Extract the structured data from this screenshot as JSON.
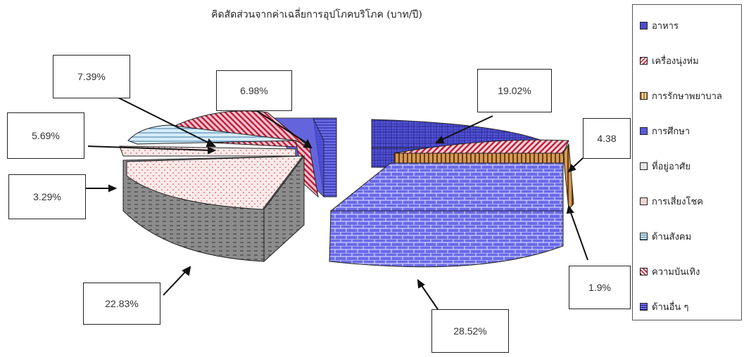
{
  "chart_data": {
    "type": "pie",
    "title": "คิดสัดส่วนจากค่าเฉลี่ยการอุปโภคบริโภค (บาท/ปี)",
    "legend_position": "right",
    "slices": [
      {
        "name": "อาหาร",
        "label": "19.02%",
        "value": 19.02,
        "color": "#4a4ad0"
      },
      {
        "name": "เครื่องนุ่งห่ม",
        "label": "4.38",
        "value": 4.38,
        "color": "#c9394a"
      },
      {
        "name": "การรักษาพยาบาล",
        "label": "1.9%",
        "value": 1.9,
        "color": "#b07a3a"
      },
      {
        "name": "การศึกษา",
        "label": "28.52%",
        "value": 28.52,
        "color": "#5a5adf"
      },
      {
        "name": "ที่อยู่อาศัย",
        "label": "22.83%",
        "value": 22.83,
        "color": "#8a8a8a"
      },
      {
        "name": "การเสี่ยงโชค",
        "label": "3.29%",
        "value": 3.29,
        "color": "#f4d6d6"
      },
      {
        "name": "ด้านสังคม",
        "label": "5.69%",
        "value": 5.69,
        "color": "#c6e0f0"
      },
      {
        "name": "ความบันเทิง",
        "label": "7.39%",
        "value": 7.39,
        "color": "#c62a4a"
      },
      {
        "name": "ด้านอื่น ๆ",
        "label": "6.98%",
        "value": 6.98,
        "color": "#5050d8"
      }
    ]
  }
}
